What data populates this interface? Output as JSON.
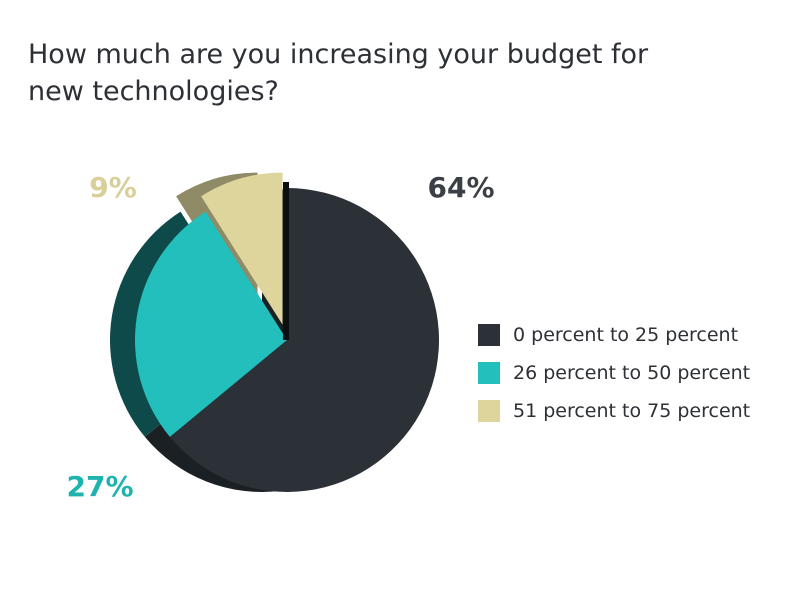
{
  "chart_data": {
    "type": "pie",
    "title_lines": [
      "How much are you increasing your budget for",
      "new technologies?"
    ],
    "categories": [
      "0 percent to 25 percent",
      "26 percent to 50 percent",
      "51 percent to 75 percent"
    ],
    "values": [
      64,
      27,
      9
    ],
    "value_labels": [
      "64%",
      "27%",
      "9%"
    ],
    "colors": [
      "#2b3137",
      "#22bfbd",
      "#ddd59c"
    ],
    "label_colors": [
      "#3a4046",
      "#1fb3b0",
      "#d8cf9a"
    ],
    "side_colors": [
      "#1b2024",
      "#0f4a4a",
      "#8f8b67"
    ],
    "legend_position": "right"
  }
}
